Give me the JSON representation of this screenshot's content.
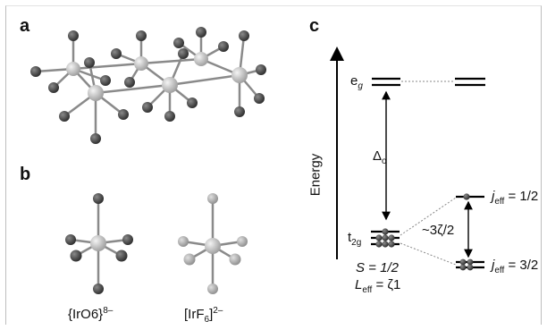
{
  "panels": {
    "a": {
      "label": "a"
    },
    "b": {
      "label": "b",
      "left_formula": "{IrO6}",
      "left_charge": "8–",
      "right_formula_open": "[IrF",
      "right_formula_sub": "6",
      "right_formula_close": "]",
      "right_charge": "2–"
    },
    "c": {
      "label": "c",
      "energy_axis_label": "Energy",
      "eg_main": "e",
      "eg_sub": "g",
      "delta_main": "Δ",
      "delta_sub": "o",
      "t2g_main": "t",
      "t2g_sub": "2g",
      "spin_text": "S = 1/2",
      "leff_main": "L",
      "leff_sub": "eff",
      "leff_value": " = ζ1",
      "jeff_upper_main": "j",
      "jeff_upper_sub": "eff",
      "jeff_upper_value": " = 1/2",
      "splitting_label": "~3ζ/2",
      "jeff_lower_main": "j",
      "jeff_lower_sub": "eff",
      "jeff_lower_value": " = 3/2"
    }
  },
  "colors": {
    "iridium_atom": "#b4b4b4",
    "oxygen_atom": "#3a3a3a",
    "fluorine_atom": "#a6a6a6",
    "bond": "#8a8a8a",
    "level_line": "#000000",
    "dotted_connector": "#888888"
  }
}
